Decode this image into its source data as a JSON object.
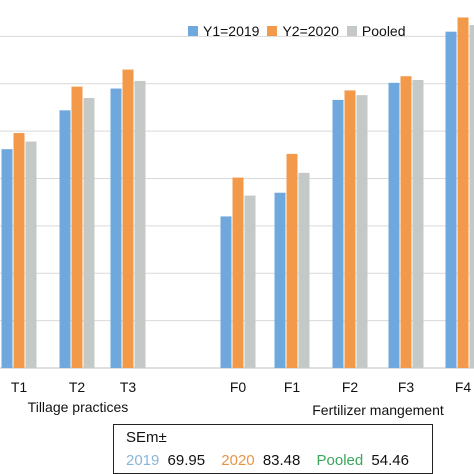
{
  "chart_data": {
    "type": "bar",
    "series": [
      {
        "name": "Y1=2019",
        "color": "#6fa8dc",
        "values": [
          531,
          572,
          595,
          460,
          485,
          583,
          601,
          655
        ]
      },
      {
        "name": "Y2=2020",
        "color": "#f39a4a",
        "values": [
          548,
          597,
          615,
          501,
          526,
          593,
          608,
          670
        ]
      },
      {
        "name": "Pooled",
        "color": "#c4c8c6",
        "values": [
          539,
          585,
          603,
          482,
          506,
          588,
          604,
          662
        ]
      }
    ],
    "groups": [
      {
        "label": "Tillage practices",
        "categories": [
          "T1",
          "T2",
          "T3"
        ]
      },
      {
        "label": "Fertilizer mangement",
        "categories": [
          "F0",
          "F1",
          "F2",
          "F3",
          "F4"
        ]
      }
    ],
    "ylim": [
      300,
      680
    ],
    "grid": true,
    "legend": "top"
  },
  "sem": {
    "title": "SEm±",
    "entries": [
      {
        "label": "2019",
        "value": "69.95",
        "color": "#8ab6d6"
      },
      {
        "label": "2020",
        "value": "83.48",
        "color": "#e8954a"
      },
      {
        "label": "Pooled",
        "value": "54.46",
        "color": "#3aa65a"
      }
    ]
  }
}
